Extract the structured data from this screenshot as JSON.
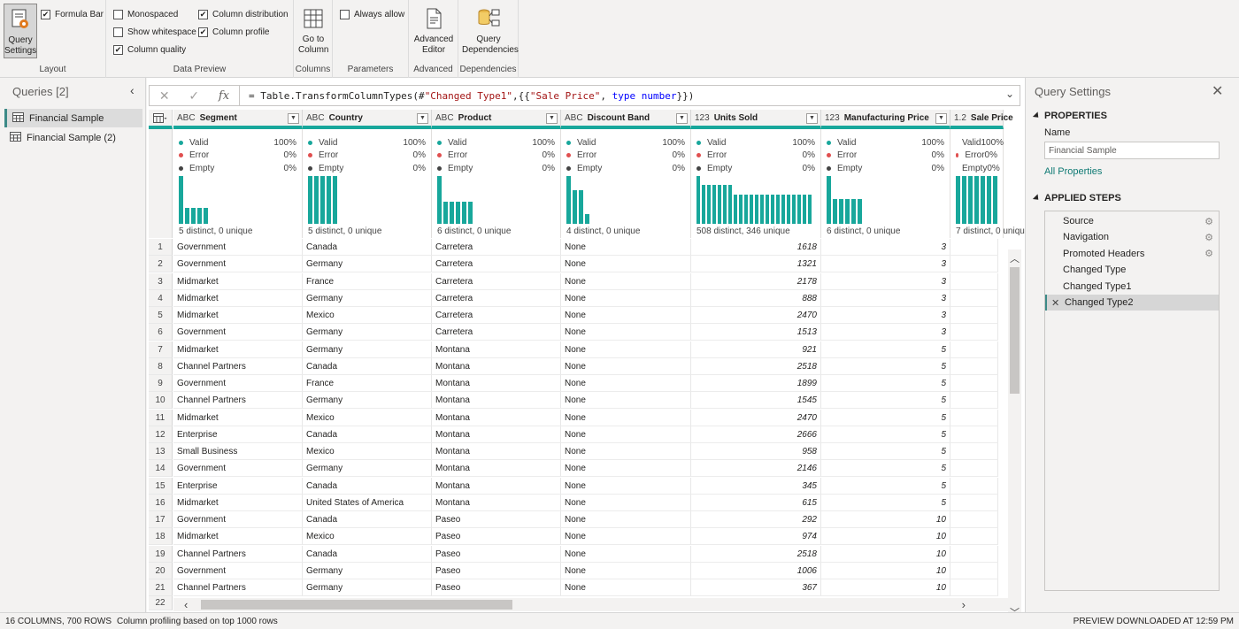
{
  "ribbon": {
    "layout": {
      "label": "Layout",
      "query_settings": "Query Settings",
      "formula_bar": {
        "label": "Formula Bar",
        "checked": true
      }
    },
    "data_preview": {
      "label": "Data Preview",
      "monospaced": {
        "label": "Monospaced",
        "checked": false
      },
      "show_whitespace": {
        "label": "Show whitespace",
        "checked": false
      },
      "column_quality": {
        "label": "Column quality",
        "checked": true
      },
      "column_distribution": {
        "label": "Column distribution",
        "checked": true
      },
      "column_profile": {
        "label": "Column profile",
        "checked": true
      }
    },
    "columns": {
      "label": "Columns",
      "go_to_column": "Go to Column"
    },
    "parameters": {
      "label": "Parameters",
      "always_allow": {
        "label": "Always allow",
        "checked": false
      }
    },
    "advanced": {
      "label": "Advanced",
      "advanced_editor": "Advanced Editor"
    },
    "dependencies": {
      "label": "Dependencies",
      "query_dependencies": "Query Dependencies"
    }
  },
  "queries": {
    "title": "Queries [2]",
    "items": [
      {
        "label": "Financial Sample",
        "selected": true
      },
      {
        "label": "Financial Sample (2)",
        "selected": false
      }
    ]
  },
  "formula": {
    "prefix": "= Table.TransformColumnTypes(#",
    "string1": "\"Changed Type1\"",
    "mid": ",{{",
    "string2": "\"Sale Price\"",
    "sep": ", ",
    "keyword": "type",
    "space": " ",
    "type_name": "number",
    "suffix": "}})"
  },
  "columns": [
    {
      "name": "Segment",
      "type": "ABC",
      "valid": "100%",
      "error": "0%",
      "empty": "0%",
      "distinct": "5 distinct, 0 unique",
      "dist": [
        1.0,
        0.34,
        0.34,
        0.34,
        0.34
      ],
      "numeric": false
    },
    {
      "name": "Country",
      "type": "ABC",
      "valid": "100%",
      "error": "0%",
      "empty": "0%",
      "distinct": "5 distinct, 0 unique",
      "dist": [
        1.0,
        1.0,
        1.0,
        1.0,
        1.0
      ],
      "numeric": false
    },
    {
      "name": "Product",
      "type": "ABC",
      "valid": "100%",
      "error": "0%",
      "empty": "0%",
      "distinct": "6 distinct, 0 unique",
      "dist": [
        1.0,
        0.47,
        0.47,
        0.47,
        0.47,
        0.47
      ],
      "numeric": false
    },
    {
      "name": "Discount Band",
      "type": "ABC",
      "valid": "100%",
      "error": "0%",
      "empty": "0%",
      "distinct": "4 distinct, 0 unique",
      "dist": [
        1.0,
        0.71,
        0.71,
        0.2
      ],
      "numeric": false
    },
    {
      "name": "Units Sold",
      "type": "123",
      "valid": "100%",
      "error": "0%",
      "empty": "0%",
      "distinct": "508 distinct, 346 unique",
      "dist": [
        1.0,
        0.82,
        0.82,
        0.82,
        0.82,
        0.82,
        0.82,
        0.62,
        0.62,
        0.62,
        0.62,
        0.62,
        0.62,
        0.62,
        0.62,
        0.62,
        0.62,
        0.62,
        0.62,
        0.62,
        0.62,
        0.62
      ],
      "numeric": true
    },
    {
      "name": "Manufacturing Price",
      "type": "123",
      "valid": "100%",
      "error": "0%",
      "empty": "0%",
      "distinct": "6 distinct, 0 unique",
      "dist": [
        1.0,
        0.51,
        0.51,
        0.51,
        0.51,
        0.51
      ],
      "numeric": true
    },
    {
      "name": "Sale Price",
      "type": "1.2",
      "valid": "100%",
      "error": "0%",
      "empty": "0%",
      "distinct": "7 distinct, 0 unique",
      "dist": [
        1.0,
        1.0,
        1.0,
        1.0,
        1.0,
        1.0,
        1.0
      ],
      "numeric": true
    }
  ],
  "quality_labels": {
    "valid": "Valid",
    "error": "Error",
    "empty": "Empty"
  },
  "colors": {
    "valid": "#18a79b",
    "error": "#e04f4f",
    "empty": "#444444",
    "bar": "#18a79b"
  },
  "rows": [
    [
      "Government",
      "Canada",
      "Carretera",
      "None",
      "1618",
      "3",
      ""
    ],
    [
      "Government",
      "Germany",
      "Carretera",
      "None",
      "1321",
      "3",
      ""
    ],
    [
      "Midmarket",
      "France",
      "Carretera",
      "None",
      "2178",
      "3",
      ""
    ],
    [
      "Midmarket",
      "Germany",
      "Carretera",
      "None",
      "888",
      "3",
      ""
    ],
    [
      "Midmarket",
      "Mexico",
      "Carretera",
      "None",
      "2470",
      "3",
      ""
    ],
    [
      "Government",
      "Germany",
      "Carretera",
      "None",
      "1513",
      "3",
      ""
    ],
    [
      "Midmarket",
      "Germany",
      "Montana",
      "None",
      "921",
      "5",
      ""
    ],
    [
      "Channel Partners",
      "Canada",
      "Montana",
      "None",
      "2518",
      "5",
      ""
    ],
    [
      "Government",
      "France",
      "Montana",
      "None",
      "1899",
      "5",
      ""
    ],
    [
      "Channel Partners",
      "Germany",
      "Montana",
      "None",
      "1545",
      "5",
      ""
    ],
    [
      "Midmarket",
      "Mexico",
      "Montana",
      "None",
      "2470",
      "5",
      ""
    ],
    [
      "Enterprise",
      "Canada",
      "Montana",
      "None",
      "2666",
      "5",
      ""
    ],
    [
      "Small Business",
      "Mexico",
      "Montana",
      "None",
      "958",
      "5",
      ""
    ],
    [
      "Government",
      "Germany",
      "Montana",
      "None",
      "2146",
      "5",
      ""
    ],
    [
      "Enterprise",
      "Canada",
      "Montana",
      "None",
      "345",
      "5",
      ""
    ],
    [
      "Midmarket",
      "United States of America",
      "Montana",
      "None",
      "615",
      "5",
      ""
    ],
    [
      "Government",
      "Canada",
      "Paseo",
      "None",
      "292",
      "10",
      ""
    ],
    [
      "Midmarket",
      "Mexico",
      "Paseo",
      "None",
      "974",
      "10",
      ""
    ],
    [
      "Channel Partners",
      "Canada",
      "Paseo",
      "None",
      "2518",
      "10",
      ""
    ],
    [
      "Government",
      "Germany",
      "Paseo",
      "None",
      "1006",
      "10",
      ""
    ],
    [
      "Channel Partners",
      "Germany",
      "Paseo",
      "None",
      "367",
      "10",
      ""
    ]
  ],
  "last_row_number": "22",
  "query_settings": {
    "title": "Query Settings",
    "properties_label": "PROPERTIES",
    "name_label": "Name",
    "name_value": "Financial Sample",
    "all_properties": "All Properties",
    "applied_steps_label": "APPLIED STEPS",
    "steps": [
      {
        "label": "Source",
        "gear": true,
        "selected": false
      },
      {
        "label": "Navigation",
        "gear": true,
        "selected": false
      },
      {
        "label": "Promoted Headers",
        "gear": true,
        "selected": false
      },
      {
        "label": "Changed Type",
        "gear": false,
        "selected": false
      },
      {
        "label": "Changed Type1",
        "gear": false,
        "selected": false
      },
      {
        "label": "Changed Type2",
        "gear": false,
        "selected": true
      }
    ]
  },
  "status": {
    "counts": "16 COLUMNS, 700 ROWS",
    "profiling": "Column profiling based on top 1000 rows",
    "downloaded": "PREVIEW DOWNLOADED AT 12:59 PM"
  }
}
